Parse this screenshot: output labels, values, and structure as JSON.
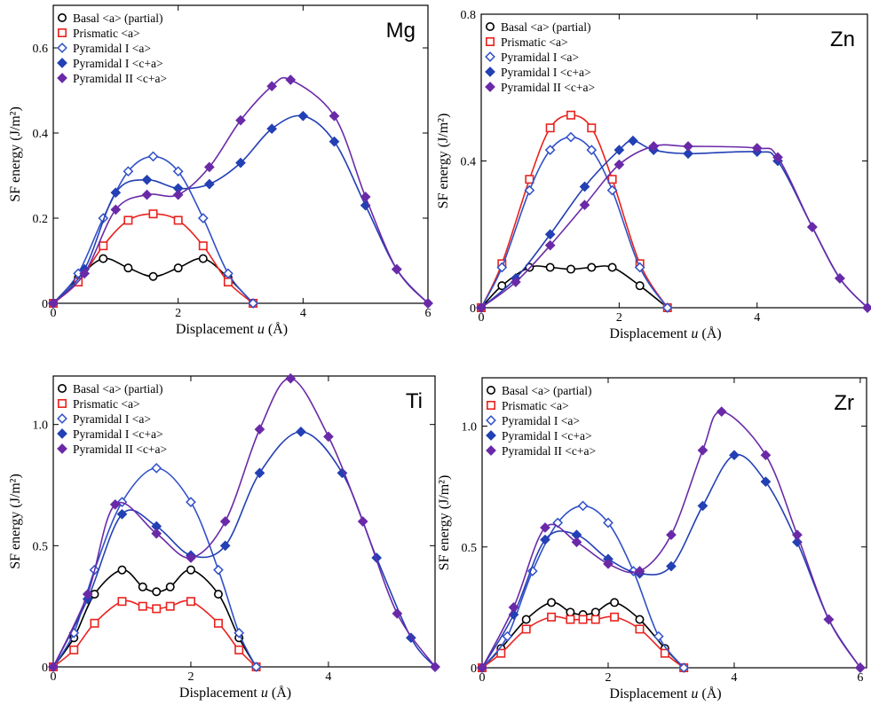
{
  "chart_data": [
    {
      "type": "line",
      "element": "Mg",
      "xlabel": "Displacement",
      "xlabel_var": "u",
      "xlabel_unit": "(Å)",
      "ylabel": "SF energy (J/m²)",
      "xlim": [
        0,
        6
      ],
      "ylim": [
        0,
        0.7
      ],
      "x_ticks": [
        0,
        2,
        4,
        6
      ],
      "y_ticks": [
        0.2,
        0.4,
        0.6
      ],
      "x_tick_labels": [
        "0",
        "2",
        "4",
        "6"
      ],
      "y_tick_labels": [
        "0.2",
        "0.4",
        "0.6"
      ],
      "legend": [
        "Basal <a> (partial)",
        "Prismatic <a>",
        "Pyramidal I <a>",
        "Pyramidal I <c+a>",
        "Pyramidal II <c+a>"
      ],
      "series": [
        {
          "name": "Basal <a> (partial)",
          "x": [
            0,
            0.4,
            0.8,
            1.2,
            1.6,
            2.0,
            2.4,
            2.8,
            3.2
          ],
          "y": [
            0,
            0.06,
            0.105,
            0.083,
            0.063,
            0.083,
            0.105,
            0.06,
            0
          ]
        },
        {
          "name": "Prismatic <a>",
          "x": [
            0,
            0.4,
            0.8,
            1.2,
            1.6,
            2.0,
            2.4,
            2.8,
            3.2
          ],
          "y": [
            0,
            0.05,
            0.135,
            0.195,
            0.21,
            0.195,
            0.135,
            0.05,
            0
          ]
        },
        {
          "name": "Pyramidal I <a>",
          "x": [
            0,
            0.4,
            0.8,
            1.2,
            1.6,
            2.0,
            2.4,
            2.8,
            3.2
          ],
          "y": [
            0,
            0.07,
            0.2,
            0.31,
            0.345,
            0.31,
            0.2,
            0.07,
            0
          ]
        },
        {
          "name": "Pyramidal I <c+a>",
          "x": [
            0,
            0.5,
            1.0,
            1.5,
            2.0,
            2.5,
            3.0,
            3.5,
            4.0,
            4.5,
            5.0,
            5.5,
            6.0
          ],
          "y": [
            0,
            0.08,
            0.26,
            0.29,
            0.27,
            0.28,
            0.33,
            0.41,
            0.44,
            0.38,
            0.23,
            0.08,
            0
          ]
        },
        {
          "name": "Pyramidal II <c+a>",
          "x": [
            0,
            0.5,
            1.0,
            1.5,
            2.0,
            2.5,
            3.0,
            3.5,
            3.8,
            4.5,
            5.0,
            5.5,
            6.0
          ],
          "y": [
            0,
            0.07,
            0.22,
            0.255,
            0.255,
            0.32,
            0.43,
            0.51,
            0.525,
            0.44,
            0.25,
            0.08,
            0
          ]
        }
      ]
    },
    {
      "type": "line",
      "element": "Zn",
      "xlabel": "Displacement",
      "xlabel_var": "u",
      "xlabel_unit": "(Å)",
      "ylabel": "SF energy (J/m²)",
      "xlim": [
        0,
        5.6
      ],
      "ylim": [
        0,
        0.8
      ],
      "x_ticks": [
        0,
        2,
        4
      ],
      "y_ticks": [
        0.4,
        0.8
      ],
      "x_tick_labels": [
        "0",
        "2",
        "4"
      ],
      "y_tick_labels": [
        "0.4",
        "0.8"
      ],
      "legend": [
        "Basal <a> (partial)",
        "Prismatic <a>",
        "Pyramidal I <a>",
        "Pyramidal I <c+a>",
        "Pyramidal II <c+a>"
      ],
      "series": [
        {
          "name": "Basal <a> (partial)",
          "x": [
            0,
            0.3,
            0.7,
            1.0,
            1.3,
            1.6,
            1.9,
            2.3,
            2.7
          ],
          "y": [
            0,
            0.06,
            0.11,
            0.11,
            0.105,
            0.11,
            0.11,
            0.06,
            0
          ]
        },
        {
          "name": "Prismatic <a>",
          "x": [
            0,
            0.3,
            0.7,
            1.0,
            1.3,
            1.6,
            1.9,
            2.3,
            2.7
          ],
          "y": [
            0,
            0.12,
            0.35,
            0.49,
            0.525,
            0.49,
            0.35,
            0.12,
            0
          ]
        },
        {
          "name": "Pyramidal I <a>",
          "x": [
            0,
            0.3,
            0.7,
            1.0,
            1.3,
            1.6,
            1.9,
            2.3,
            2.7
          ],
          "y": [
            0,
            0.11,
            0.32,
            0.43,
            0.465,
            0.43,
            0.32,
            0.11,
            0
          ]
        },
        {
          "name": "Pyramidal I <c+a>",
          "x": [
            0,
            0.5,
            1.0,
            1.5,
            2.0,
            2.2,
            2.5,
            3.0,
            4.0,
            4.3,
            4.8,
            5.2,
            5.6
          ],
          "y": [
            0,
            0.08,
            0.2,
            0.33,
            0.43,
            0.455,
            0.43,
            0.42,
            0.425,
            0.4,
            0.22,
            0.08,
            0
          ]
        },
        {
          "name": "Pyramidal II <c+a>",
          "x": [
            0,
            0.5,
            1.0,
            1.5,
            2.0,
            2.5,
            3.0,
            4.0,
            4.3,
            4.8,
            5.2,
            5.6
          ],
          "y": [
            0,
            0.07,
            0.17,
            0.28,
            0.39,
            0.44,
            0.44,
            0.435,
            0.41,
            0.22,
            0.08,
            0
          ]
        }
      ]
    },
    {
      "type": "line",
      "element": "Ti",
      "xlabel": "Displacement",
      "xlabel_var": "u",
      "xlabel_unit": "(Å)",
      "ylabel": "SF energy (J/m²)",
      "xlim": [
        0,
        5.55
      ],
      "ylim": [
        0,
        1.2
      ],
      "x_ticks": [
        0,
        2,
        4
      ],
      "y_ticks": [
        0.5,
        1.0
      ],
      "x_tick_labels": [
        "0",
        "2",
        "4"
      ],
      "y_tick_labels": [
        "0.5",
        "1.0"
      ],
      "legend": [
        "Basal <a> (partial)",
        "Prismatic <a>",
        "Pyramidal I <a>",
        "Pyramidal I <c+a>",
        "Pyramidal II <c+a>"
      ],
      "series": [
        {
          "name": "Basal <a> (partial)",
          "x": [
            0,
            0.3,
            0.6,
            1.0,
            1.3,
            1.5,
            1.7,
            2.0,
            2.4,
            2.7,
            2.95
          ],
          "y": [
            0,
            0.12,
            0.3,
            0.4,
            0.33,
            0.31,
            0.33,
            0.4,
            0.3,
            0.12,
            0
          ]
        },
        {
          "name": "Prismatic <a>",
          "x": [
            0,
            0.3,
            0.6,
            1.0,
            1.3,
            1.5,
            1.7,
            2.0,
            2.4,
            2.7,
            2.95
          ],
          "y": [
            0,
            0.07,
            0.18,
            0.27,
            0.25,
            0.24,
            0.25,
            0.27,
            0.18,
            0.07,
            0
          ]
        },
        {
          "name": "Pyramidal I <a>",
          "x": [
            0,
            0.3,
            0.6,
            1.0,
            1.5,
            2.0,
            2.4,
            2.7,
            2.95
          ],
          "y": [
            0,
            0.14,
            0.4,
            0.68,
            0.82,
            0.68,
            0.4,
            0.14,
            0
          ]
        },
        {
          "name": "Pyramidal I <c+a>",
          "x": [
            0,
            0.5,
            1.0,
            1.5,
            2.0,
            2.5,
            3.0,
            3.6,
            4.2,
            4.7,
            5.2,
            5.55
          ],
          "y": [
            0,
            0.28,
            0.63,
            0.58,
            0.46,
            0.5,
            0.8,
            0.97,
            0.8,
            0.45,
            0.12,
            0
          ]
        },
        {
          "name": "Pyramidal II <c+a>",
          "x": [
            0,
            0.5,
            0.9,
            1.5,
            2.0,
            2.5,
            3.0,
            3.45,
            4.0,
            4.5,
            5.0,
            5.55
          ],
          "y": [
            0,
            0.3,
            0.67,
            0.55,
            0.45,
            0.6,
            0.98,
            1.19,
            0.95,
            0.6,
            0.22,
            0
          ]
        }
      ]
    },
    {
      "type": "line",
      "element": "Zr",
      "xlabel": "Displacement",
      "xlabel_var": "u",
      "xlabel_unit": "(Å)",
      "ylabel": "SF energy (J/m²)",
      "xlim": [
        0,
        6.1
      ],
      "ylim": [
        0,
        1.2
      ],
      "x_ticks": [
        0,
        2,
        4,
        6
      ],
      "y_ticks": [
        0.5,
        1.0
      ],
      "x_tick_labels": [
        "0",
        "2",
        "4",
        "6"
      ],
      "y_tick_labels": [
        "0.5",
        "1.0"
      ],
      "legend": [
        "Basal <a> (partial)",
        "Prismatic <a>",
        "Pyramidal I <a>",
        "Pyramidal I <c+a>",
        "Pyramidal II <c+a>"
      ],
      "series": [
        {
          "name": "Basal <a> (partial)",
          "x": [
            0,
            0.3,
            0.7,
            1.1,
            1.4,
            1.6,
            1.8,
            2.1,
            2.5,
            2.9,
            3.2
          ],
          "y": [
            0,
            0.08,
            0.2,
            0.27,
            0.23,
            0.22,
            0.23,
            0.27,
            0.2,
            0.08,
            0
          ]
        },
        {
          "name": "Prismatic <a>",
          "x": [
            0,
            0.3,
            0.7,
            1.1,
            1.4,
            1.6,
            1.8,
            2.1,
            2.5,
            2.9,
            3.2
          ],
          "y": [
            0,
            0.06,
            0.16,
            0.21,
            0.2,
            0.2,
            0.2,
            0.21,
            0.16,
            0.06,
            0
          ]
        },
        {
          "name": "Pyramidal I <a>",
          "x": [
            0,
            0.4,
            0.8,
            1.2,
            1.6,
            2.0,
            2.4,
            2.8,
            3.2
          ],
          "y": [
            0,
            0.13,
            0.4,
            0.6,
            0.67,
            0.6,
            0.4,
            0.13,
            0
          ]
        },
        {
          "name": "Pyramidal I <c+a>",
          "x": [
            0,
            0.5,
            1.0,
            1.5,
            2.0,
            2.5,
            3.0,
            3.5,
            4.0,
            4.5,
            5.0,
            5.5,
            6.0
          ],
          "y": [
            0,
            0.22,
            0.53,
            0.55,
            0.45,
            0.39,
            0.42,
            0.67,
            0.88,
            0.77,
            0.52,
            0.2,
            0
          ]
        },
        {
          "name": "Pyramidal II <c+a>",
          "x": [
            0,
            0.5,
            1.0,
            1.5,
            2.0,
            2.5,
            3.0,
            3.5,
            3.8,
            4.5,
            5.0,
            5.5,
            6.0
          ],
          "y": [
            0,
            0.25,
            0.58,
            0.52,
            0.43,
            0.4,
            0.55,
            0.9,
            1.06,
            0.88,
            0.55,
            0.2,
            0
          ]
        }
      ]
    }
  ],
  "styles": {
    "Basal <a> (partial)": {
      "color": "#000000",
      "marker": "circle-open"
    },
    "Prismatic <a>": {
      "color": "#e8231f",
      "marker": "square-open"
    },
    "Pyramidal I <a>": {
      "color": "#3050c8",
      "marker": "diamond-open"
    },
    "Pyramidal I <c+a>": {
      "color": "#2340b4",
      "marker": "diamond-filled"
    },
    "Pyramidal II <c+a>": {
      "color": "#6a2aa8",
      "marker": "diamond-filled"
    }
  }
}
